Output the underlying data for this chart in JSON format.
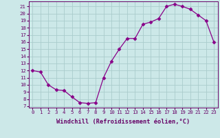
{
  "x": [
    0,
    1,
    2,
    3,
    4,
    5,
    6,
    7,
    8,
    9,
    10,
    11,
    12,
    13,
    14,
    15,
    16,
    17,
    18,
    19,
    20,
    21,
    22,
    23
  ],
  "y": [
    12.0,
    11.8,
    10.0,
    9.3,
    9.2,
    8.3,
    7.5,
    7.4,
    7.5,
    11.0,
    13.3,
    15.0,
    16.5,
    16.5,
    18.5,
    18.8,
    19.3,
    21.0,
    21.3,
    21.0,
    20.6,
    19.8,
    19.0,
    16.0
  ],
  "line_color": "#880088",
  "marker": "D",
  "marker_size": 2.5,
  "bg_color": "#cce8e8",
  "grid_color": "#aacccc",
  "xlabel": "Windchill (Refroidissement éolien,°C)",
  "xlim": [
    -0.5,
    23.5
  ],
  "ylim": [
    6.8,
    21.7
  ],
  "yticks": [
    7,
    8,
    9,
    10,
    11,
    12,
    13,
    14,
    15,
    16,
    17,
    18,
    19,
    20,
    21
  ],
  "xticks": [
    0,
    1,
    2,
    3,
    4,
    5,
    6,
    7,
    8,
    9,
    10,
    11,
    12,
    13,
    14,
    15,
    16,
    17,
    18,
    19,
    20,
    21,
    22,
    23
  ],
  "tick_color": "#660066",
  "label_color": "#660066",
  "tick_fontsize": 5.2,
  "xlabel_fontsize": 6.2
}
